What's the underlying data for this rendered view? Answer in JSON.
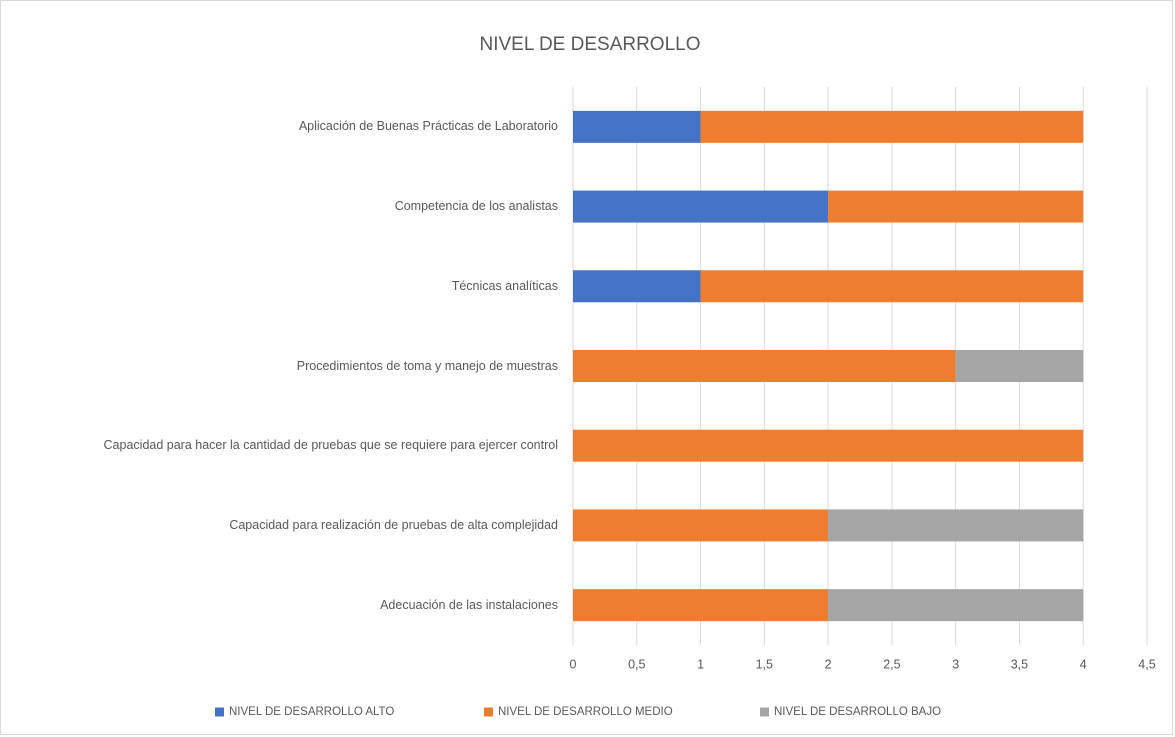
{
  "chart_data": {
    "type": "stacked_barh",
    "title": "NIVEL DE DESARROLLO",
    "categories": [
      "Aplicación de Buenas Prácticas de Laboratorio",
      "Competencia de los analistas",
      "Técnicas analíticas",
      "Procedimientos de toma y manejo de muestras",
      "Capacidad para hacer la cantidad de pruebas que se requiere para ejercer control",
      "Capacidad para realización de pruebas de alta complejidad",
      "Adecuación de las instalaciones"
    ],
    "series": [
      {
        "name": "NIVEL DE DESARROLLO ALTO",
        "color": "#4472c4",
        "values": [
          1,
          2,
          1,
          0,
          0,
          0,
          0
        ]
      },
      {
        "name": "NIVEL DE DESARROLLO MEDIO",
        "color": "#ed7d31",
        "values": [
          3,
          2,
          3,
          3,
          4,
          2,
          2
        ]
      },
      {
        "name": "NIVEL DE DESARROLLO BAJO",
        "color": "#a5a5a5",
        "values": [
          0,
          0,
          0,
          1,
          0,
          2,
          2
        ]
      }
    ],
    "xlim": [
      0,
      4.5
    ],
    "xticks": [
      0,
      {
        "value": 0.5,
        "label": "0,5"
      },
      1,
      {
        "value": 1.5,
        "label": "1,5"
      },
      2,
      {
        "value": 2.5,
        "label": "2,5"
      },
      3,
      {
        "value": 3.5,
        "label": "3,5"
      },
      4,
      {
        "value": 4.5,
        "label": "4,5"
      }
    ],
    "grid": true,
    "legend": "bottom"
  }
}
